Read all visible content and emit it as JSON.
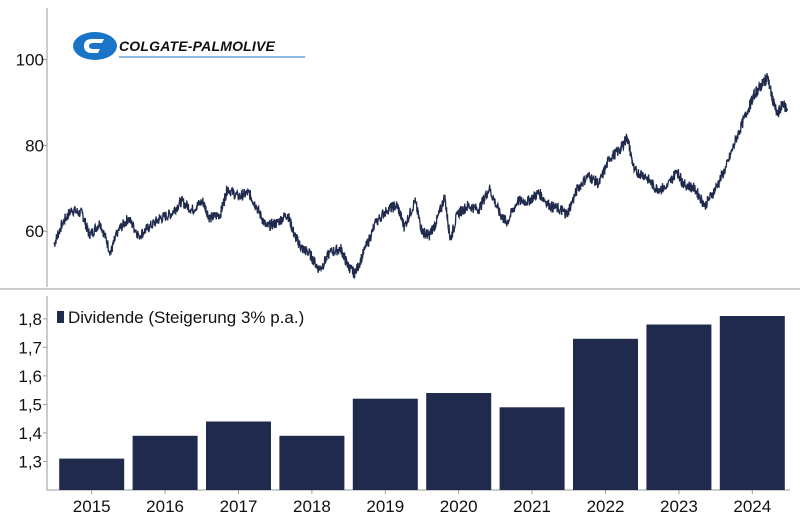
{
  "logo": {
    "text": "COLGATE-PALMOLIVE"
  },
  "colors": {
    "bar": "#1f2a4d",
    "line": "#1f2a4d",
    "axis": "#999999",
    "logo_blue": "#1a75c9"
  },
  "chart_data": [
    {
      "type": "line",
      "title": "",
      "xlabel": "",
      "ylabel": "",
      "yticks": [
        60,
        80,
        100
      ],
      "ylim": [
        47,
        112
      ],
      "xlim": [
        2014.5,
        2025.0
      ],
      "grid": false,
      "series": [
        {
          "points": [
            [
              2014.6,
              57
            ],
            [
              2014.72,
              62
            ],
            [
              2014.85,
              65
            ],
            [
              2015.0,
              64
            ],
            [
              2015.1,
              59
            ],
            [
              2015.25,
              62
            ],
            [
              2015.4,
              55
            ],
            [
              2015.5,
              60
            ],
            [
              2015.65,
              63
            ],
            [
              2015.8,
              59
            ],
            [
              2015.95,
              61
            ],
            [
              2016.1,
              63
            ],
            [
              2016.25,
              64
            ],
            [
              2016.4,
              67
            ],
            [
              2016.55,
              65
            ],
            [
              2016.7,
              67
            ],
            [
              2016.8,
              63
            ],
            [
              2016.95,
              64
            ],
            [
              2017.05,
              70
            ],
            [
              2017.2,
              68
            ],
            [
              2017.35,
              69
            ],
            [
              2017.45,
              66
            ],
            [
              2017.6,
              61
            ],
            [
              2017.75,
              62
            ],
            [
              2017.9,
              64
            ],
            [
              2018.0,
              59
            ],
            [
              2018.1,
              56
            ],
            [
              2018.2,
              55
            ],
            [
              2018.35,
              51
            ],
            [
              2018.5,
              55
            ],
            [
              2018.65,
              56
            ],
            [
              2018.75,
              52
            ],
            [
              2018.85,
              50
            ],
            [
              2019.0,
              56
            ],
            [
              2019.15,
              62
            ],
            [
              2019.3,
              65
            ],
            [
              2019.45,
              66
            ],
            [
              2019.55,
              61
            ],
            [
              2019.7,
              67
            ],
            [
              2019.8,
              60
            ],
            [
              2019.9,
              59
            ],
            [
              2020.0,
              62
            ],
            [
              2020.12,
              68
            ],
            [
              2020.2,
              58
            ],
            [
              2020.3,
              64
            ],
            [
              2020.45,
              66
            ],
            [
              2020.6,
              65
            ],
            [
              2020.75,
              70
            ],
            [
              2020.9,
              64
            ],
            [
              2021.0,
              62
            ],
            [
              2021.15,
              67
            ],
            [
              2021.3,
              67
            ],
            [
              2021.45,
              69
            ],
            [
              2021.6,
              66
            ],
            [
              2021.75,
              65
            ],
            [
              2021.85,
              64
            ],
            [
              2022.0,
              70
            ],
            [
              2022.15,
              73
            ],
            [
              2022.3,
              71
            ],
            [
              2022.45,
              77
            ],
            [
              2022.6,
              79
            ],
            [
              2022.7,
              82
            ],
            [
              2022.8,
              74
            ],
            [
              2022.95,
              73
            ],
            [
              2023.1,
              70
            ],
            [
              2023.25,
              70
            ],
            [
              2023.4,
              74
            ],
            [
              2023.5,
              71
            ],
            [
              2023.65,
              70
            ],
            [
              2023.8,
              66
            ],
            [
              2023.95,
              70
            ],
            [
              2024.1,
              75
            ],
            [
              2024.25,
              82
            ],
            [
              2024.4,
              88
            ],
            [
              2024.5,
              92
            ],
            [
              2024.6,
              94
            ],
            [
              2024.68,
              96
            ],
            [
              2024.75,
              91
            ],
            [
              2024.82,
              87
            ],
            [
              2024.9,
              90
            ],
            [
              2024.96,
              88
            ]
          ]
        }
      ]
    },
    {
      "type": "bar",
      "title": "",
      "xlabel": "",
      "ylabel": "",
      "categories": [
        "2015",
        "2016",
        "2017",
        "2018",
        "2019",
        "2020",
        "2021",
        "2022",
        "2023",
        "2024"
      ],
      "series": [
        {
          "name": "Dividende (Steigerung 3% p.a.)",
          "values": [
            1.31,
            1.39,
            1.44,
            1.39,
            1.52,
            1.54,
            1.49,
            1.73,
            1.78,
            1.81
          ]
        }
      ],
      "yticks": [
        "1,3",
        "1,4",
        "1,5",
        "1,6",
        "1,7",
        "1,8"
      ],
      "ylim": [
        1.2,
        1.88
      ],
      "grid": false,
      "legend": "top-left"
    }
  ]
}
